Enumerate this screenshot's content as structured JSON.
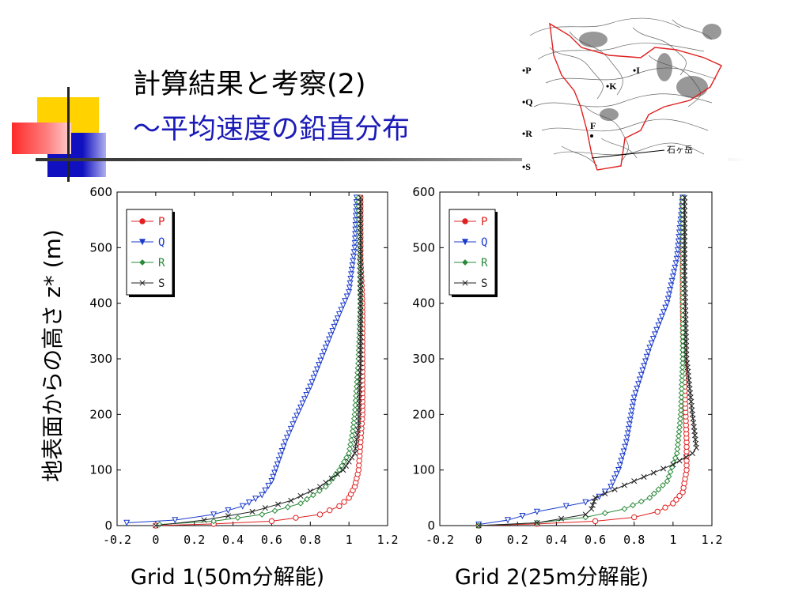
{
  "slide": {
    "title_line1": "計算結果と考察(2)",
    "title_line2": "〜平均速度の鉛直分布",
    "ylabel": "地表面からの高さ z* (m)",
    "accent_color": "#1a1ab8"
  },
  "map": {
    "labels": [
      {
        "text": "•P",
        "name": "map-label-p"
      },
      {
        "text": "•Q",
        "name": "map-label-q"
      },
      {
        "text": "•R",
        "name": "map-label-r"
      },
      {
        "text": "•S",
        "name": "map-label-s"
      },
      {
        "text": "•I",
        "name": "map-label-i"
      },
      {
        "text": "•K",
        "name": "map-label-k"
      },
      {
        "text": "F",
        "name": "map-label-f"
      },
      {
        "text": "石ヶ岳",
        "name": "map-label-ishigatake"
      }
    ],
    "boundary_color": "#e02020"
  },
  "chart_data": [
    {
      "type": "line",
      "caption": "Grid 1(50m分解能)",
      "xlim": [
        -0.2,
        1.2
      ],
      "ylim": [
        0,
        600
      ],
      "xticks": [
        "-0.2",
        "0",
        "0.2",
        "0.4",
        "0.6",
        "0.8",
        "1",
        "1.2"
      ],
      "yticks": [
        "0",
        "100",
        "200",
        "300",
        "400",
        "500",
        "600"
      ],
      "legend_position": "top-left",
      "series": [
        {
          "name": "P",
          "color": "#e02020",
          "marker": "circle",
          "x": [
            0,
            0.3,
            0.6,
            0.85,
            0.95,
            1.0,
            1.03,
            1.05,
            1.06,
            1.07,
            1.07,
            1.07,
            1.06,
            1.06,
            1.06
          ],
          "y": [
            0,
            3,
            8,
            20,
            35,
            50,
            70,
            100,
            150,
            200,
            300,
            400,
            480,
            550,
            590
          ]
        },
        {
          "name": "Q",
          "color": "#1a3acc",
          "marker": "triangle-down",
          "x": [
            -0.15,
            0.1,
            0.3,
            0.45,
            0.55,
            0.6,
            0.63,
            0.67,
            0.72,
            0.8,
            0.88,
            0.95,
            1.0,
            1.03,
            1.04
          ],
          "y": [
            5,
            10,
            20,
            35,
            55,
            80,
            110,
            150,
            190,
            250,
            320,
            380,
            420,
            500,
            590
          ]
        },
        {
          "name": "R",
          "color": "#2a8a3a",
          "marker": "diamond",
          "x": [
            0.02,
            0.3,
            0.55,
            0.75,
            0.88,
            0.95,
            1.0,
            1.02,
            1.03,
            1.04,
            1.05,
            1.06,
            1.05
          ],
          "y": [
            2,
            8,
            20,
            40,
            70,
            100,
            130,
            170,
            200,
            250,
            300,
            400,
            590
          ]
        },
        {
          "name": "S",
          "color": "#222222",
          "marker": "cross",
          "x": [
            0,
            0.25,
            0.5,
            0.7,
            0.85,
            0.97,
            1.03,
            1.05,
            1.06,
            1.06,
            1.06
          ],
          "y": [
            0,
            10,
            25,
            45,
            70,
            100,
            130,
            180,
            300,
            450,
            590
          ]
        }
      ]
    },
    {
      "type": "line",
      "caption": "Grid 2(25m分解能)",
      "xlim": [
        -0.2,
        1.2
      ],
      "ylim": [
        0,
        600
      ],
      "xticks": [
        "-0.2",
        "0",
        "0.2",
        "0.4",
        "0.6",
        "0.8",
        "1",
        "1.2"
      ],
      "yticks": [
        "0",
        "100",
        "200",
        "300",
        "400",
        "500",
        "600"
      ],
      "legend_position": "top-left",
      "series": [
        {
          "name": "P",
          "color": "#e02020",
          "marker": "circle",
          "x": [
            0,
            0.3,
            0.6,
            0.8,
            0.92,
            1.0,
            1.05,
            1.07,
            1.07,
            1.06,
            1.05,
            1.05,
            1.05
          ],
          "y": [
            0,
            3,
            8,
            15,
            25,
            40,
            60,
            100,
            150,
            250,
            400,
            500,
            590
          ]
        },
        {
          "name": "Q",
          "color": "#1a3acc",
          "marker": "triangle-down",
          "x": [
            0,
            0.15,
            0.3,
            0.45,
            0.55,
            0.62,
            0.68,
            0.72,
            0.76,
            0.8,
            0.88,
            0.97,
            1.02,
            1.05
          ],
          "y": [
            2,
            10,
            25,
            35,
            42,
            52,
            70,
            100,
            150,
            230,
            320,
            400,
            480,
            590
          ]
        },
        {
          "name": "R",
          "color": "#2a8a3a",
          "marker": "diamond",
          "x": [
            0,
            0.3,
            0.55,
            0.75,
            0.88,
            0.97,
            1.02,
            1.04,
            1.05,
            1.05,
            1.05
          ],
          "y": [
            0,
            5,
            15,
            30,
            50,
            80,
            130,
            200,
            300,
            450,
            590
          ]
        },
        {
          "name": "S",
          "color": "#222222",
          "marker": "cross",
          "x": [
            0,
            0.3,
            0.55,
            0.58,
            0.6,
            0.8,
            1.0,
            1.1,
            1.12,
            1.1,
            1.07,
            1.06,
            1.06
          ],
          "y": [
            0,
            5,
            20,
            30,
            50,
            80,
            110,
            130,
            140,
            200,
            300,
            450,
            590
          ]
        }
      ]
    }
  ]
}
